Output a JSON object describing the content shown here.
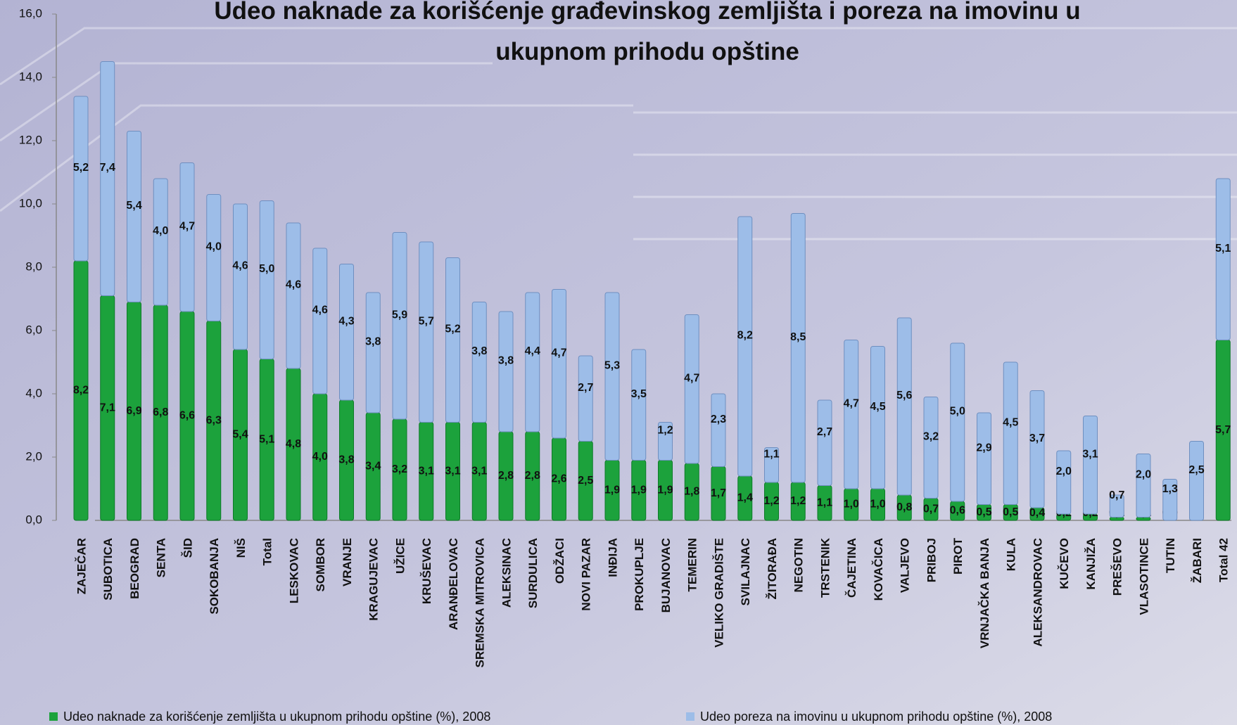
{
  "chart_data": {
    "type": "stacked_bar",
    "title": "Udeo naknade za korišćenje građevinskog zemljišta i poreza na imovinu u ukupnom prihodu opštine",
    "categories": [
      "ZAJEČAR",
      "SUBOTICA",
      "BEOGRAD",
      "SENTA",
      "ŠID",
      "SOKOBANJA",
      "NIŠ",
      "Total",
      "LESKOVAC",
      "SOMBOR",
      "VRANJE",
      "KRAGUJEVAC",
      "UŽICE",
      "KRUŠEVAC",
      "ARANĐELOVAC",
      "SREMSKA MITROVICA",
      "ALEKSINAC",
      "SURDULICA",
      "ODŽACI",
      "NOVI PAZAR",
      "INĐIJA",
      "PROKUPLJE",
      "BUJANOVAC",
      "TEMERIN",
      "VELIKO GRADIŠTE",
      "SVILAJNAC",
      "ŽITORAĐA",
      "NEGOTIN",
      "TRSTENIK",
      "ČAJETINA",
      "KOVAČICA",
      "VALJEVO",
      "PRIBOJ",
      "PIROT",
      "VRNJAČKA BANJA",
      "KULA",
      "ALEKSANDROVAC",
      "KUČEVO",
      "KANJIŽA",
      "PREŠEVO",
      "VLASOTINCE",
      "TUTIN",
      "ŽABARI",
      "Total 42"
    ],
    "series": [
      {
        "name": "Udeo naknade za korišćenje zemljišta u ukupnom prihodu opštine (%), 2008",
        "color": "#1ca23c",
        "values": [
          8.2,
          7.1,
          6.9,
          6.8,
          6.6,
          6.3,
          5.4,
          5.1,
          4.8,
          4.0,
          3.8,
          3.4,
          3.2,
          3.1,
          3.1,
          3.1,
          2.8,
          2.8,
          2.6,
          2.5,
          1.9,
          1.9,
          1.9,
          1.8,
          1.7,
          1.4,
          1.2,
          1.2,
          1.1,
          1.0,
          1.0,
          0.8,
          0.7,
          0.6,
          0.5,
          0.5,
          0.4,
          0.2,
          0.2,
          0.1,
          0.1,
          0.0,
          0.0,
          5.7
        ],
        "value_labels": [
          "8,2",
          "7,1",
          "6,9",
          "6,8",
          "6,6",
          "6,3",
          "5,4",
          "5,1",
          "4,8",
          "4,0",
          "3,8",
          "3,4",
          "3,2",
          "3,1",
          "3,1",
          "3,1",
          "2,8",
          "2,8",
          "2,6",
          "2,5",
          "1,9",
          "1,9",
          "1,9",
          "1,8",
          "1,7",
          "1,4",
          "1,2",
          "1,2",
          "1,1",
          "1,0",
          "1,0",
          "0,8",
          "0,7",
          "0,6",
          "0,5",
          "0,5",
          "0,4",
          "0,2",
          "0,2",
          "0,1",
          "0,1",
          "0,0",
          "0,0",
          "5,7"
        ]
      },
      {
        "name": "Udeo poreza na imovinu u ukupnom prihodu opštine (%), 2008",
        "color": "#9dbde8",
        "values": [
          5.2,
          7.4,
          5.4,
          4.0,
          4.7,
          4.0,
          4.6,
          5.0,
          4.6,
          4.6,
          4.3,
          3.8,
          5.9,
          5.7,
          5.2,
          3.8,
          3.8,
          4.4,
          4.7,
          2.7,
          5.3,
          3.5,
          1.2,
          4.7,
          2.3,
          8.2,
          1.1,
          8.5,
          2.7,
          4.7,
          4.5,
          5.6,
          3.2,
          5.0,
          2.9,
          4.5,
          3.7,
          2.0,
          3.1,
          0.7,
          2.0,
          1.3,
          2.5,
          5.1
        ],
        "value_labels": [
          "5,2",
          "7,4",
          "5,4",
          "4,0",
          "4,7",
          "4,0",
          "4,6",
          "5,0",
          "4,6",
          "4,6",
          "4,3",
          "3,8",
          "5,9",
          "5,7",
          "5,2",
          "3,8",
          "3,8",
          "4,4",
          "4,7",
          "2,7",
          "5,3",
          "3,5",
          "1,2",
          "4,7",
          "2,3",
          "8,2",
          "1,1",
          "8,5",
          "2,7",
          "4,7",
          "4,5",
          "5,6",
          "3,2",
          "5,0",
          "2,9",
          "4,5",
          "3,7",
          "2,0",
          "3,1",
          "0,7",
          "2,0",
          "1,3",
          "2,5",
          "5,1"
        ]
      }
    ],
    "ylim": [
      0,
      16
    ],
    "yticks": [
      {
        "value": 0,
        "label": "0,0"
      },
      {
        "value": 2,
        "label": "2,0"
      },
      {
        "value": 4,
        "label": "4,0"
      },
      {
        "value": 6,
        "label": "6,0"
      },
      {
        "value": 8,
        "label": "8,0"
      },
      {
        "value": 10,
        "label": "10,0"
      },
      {
        "value": 12,
        "label": "12,0"
      },
      {
        "value": 14,
        "label": "14,0"
      },
      {
        "value": 16,
        "label": "16,0"
      }
    ],
    "legend": "bottom"
  }
}
